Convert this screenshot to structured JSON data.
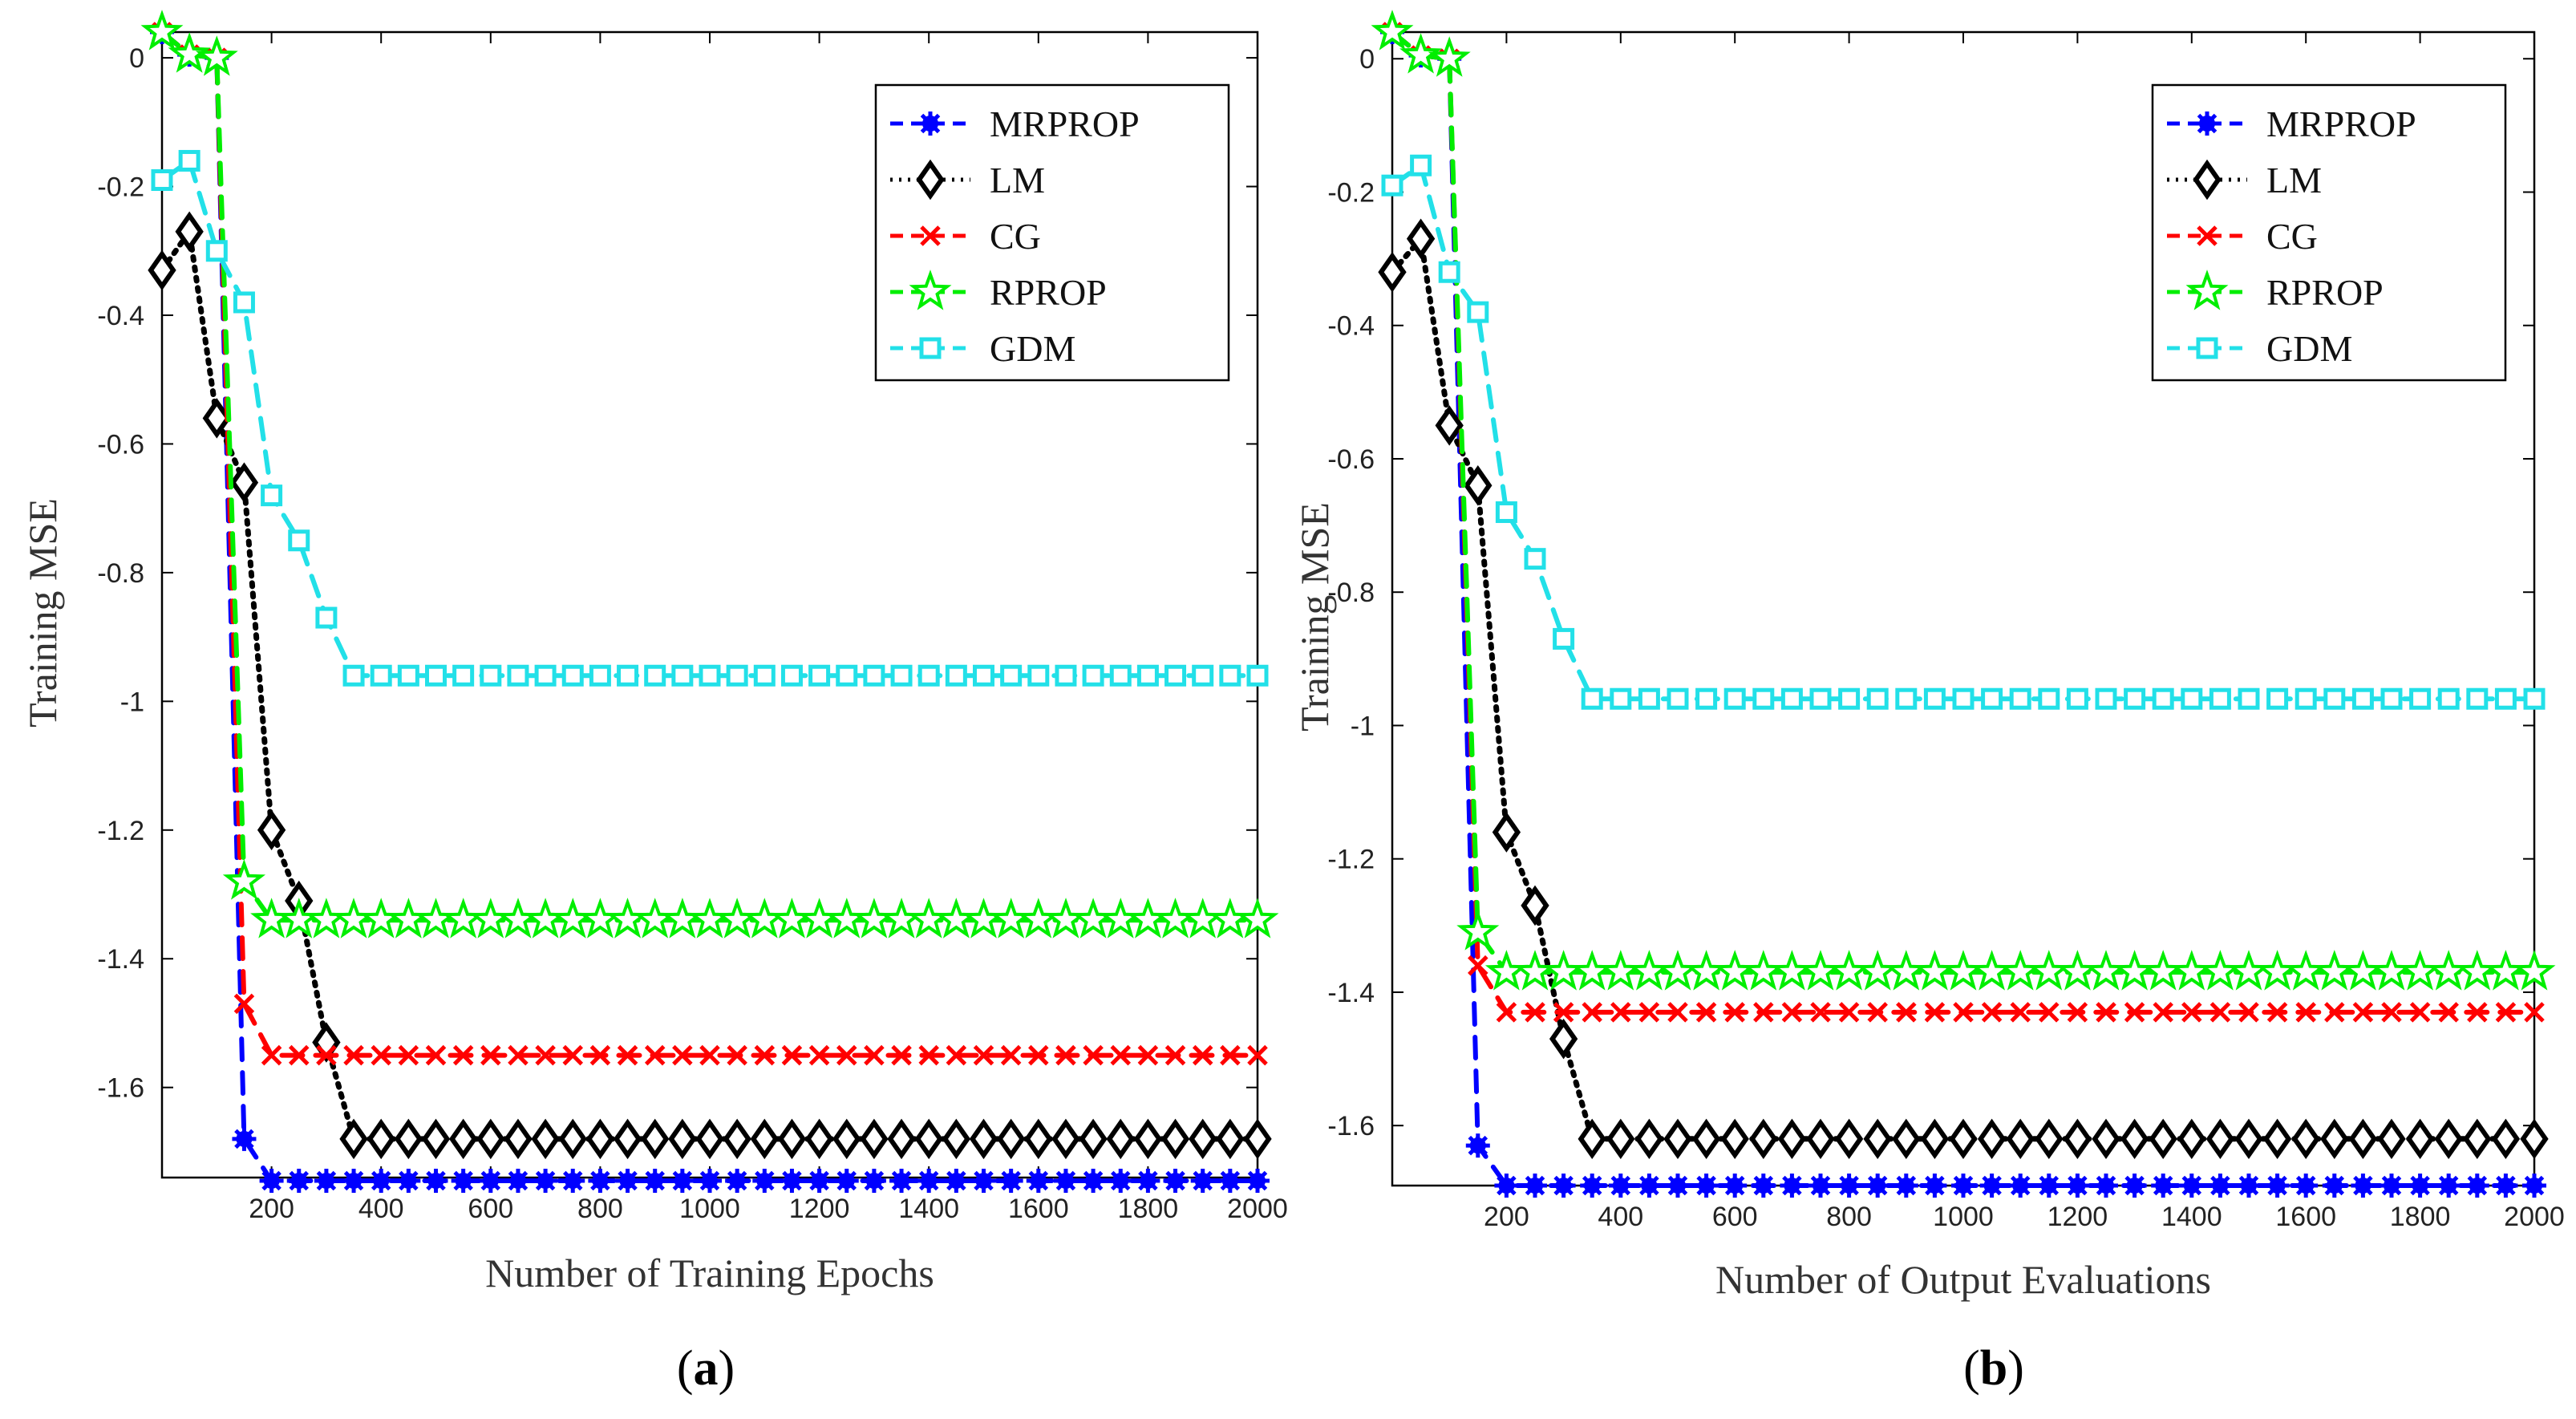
{
  "chart_data": [
    {
      "type": "line",
      "panel_label": "a",
      "title": "",
      "xlabel": "Number of Training Epochs",
      "ylabel": "Training MSE",
      "xlim": [
        0,
        2000
      ],
      "ylim": [
        -1.74,
        0.04
      ],
      "xticks": [
        200,
        400,
        600,
        800,
        1000,
        1200,
        1400,
        1600,
        1800,
        2000
      ],
      "xtick_labels": [
        "200",
        "400",
        "600",
        "800",
        "1000",
        "1200",
        "1400",
        "1600",
        "1800",
        "2000"
      ],
      "yticks": [
        0,
        -0.2,
        -0.4,
        -0.6,
        -0.8,
        -1,
        -1.2,
        -1.4,
        -1.6
      ],
      "ytick_labels": [
        "0",
        "-0.2",
        "-0.4",
        "-0.6",
        "-0.8",
        "-1",
        "-1.2",
        "-1.4",
        "-1.6"
      ],
      "legend_position": "top-right",
      "x": [
        0,
        50,
        100,
        150,
        200,
        250,
        300,
        350,
        400,
        450,
        500,
        550,
        600,
        650,
        700,
        750,
        800,
        850,
        900,
        950,
        1000,
        1050,
        1100,
        1150,
        1200,
        1250,
        1300,
        1350,
        1400,
        1450,
        1500,
        1550,
        1600,
        1650,
        1700,
        1750,
        1800,
        1850,
        1900,
        1950,
        2000
      ],
      "series": [
        {
          "name": "MRPROP",
          "color": "#0000ff",
          "marker": "asterisk",
          "dash": "dashed",
          "values": [
            0.04,
            0.005,
            0.0,
            -1.68,
            -1.745,
            -1.745,
            -1.745,
            -1.745,
            -1.745,
            -1.745,
            -1.745,
            -1.745,
            -1.745,
            -1.745,
            -1.745,
            -1.745,
            -1.745,
            -1.745,
            -1.745,
            -1.745,
            -1.745,
            -1.745,
            -1.745,
            -1.745,
            -1.745,
            -1.745,
            -1.745,
            -1.745,
            -1.745,
            -1.745,
            -1.745,
            -1.745,
            -1.745,
            -1.745,
            -1.745,
            -1.745,
            -1.745,
            -1.745,
            -1.745,
            -1.745,
            -1.745
          ]
        },
        {
          "name": "LM",
          "color": "#000000",
          "marker": "diamond",
          "dash": "dotted",
          "values": [
            -0.33,
            -0.27,
            -0.56,
            -0.66,
            -1.2,
            -1.31,
            -1.53,
            -1.68,
            -1.68,
            -1.68,
            -1.68,
            -1.68,
            -1.68,
            -1.68,
            -1.68,
            -1.68,
            -1.68,
            -1.68,
            -1.68,
            -1.68,
            -1.68,
            -1.68,
            -1.68,
            -1.68,
            -1.68,
            -1.68,
            -1.68,
            -1.68,
            -1.68,
            -1.68,
            -1.68,
            -1.68,
            -1.68,
            -1.68,
            -1.68,
            -1.68,
            -1.68,
            -1.68,
            -1.68,
            -1.68,
            -1.68
          ]
        },
        {
          "name": "CG",
          "color": "#ff0000",
          "marker": "x",
          "dash": "dashed",
          "values": [
            0.04,
            0.005,
            0.0,
            -1.47,
            -1.55,
            -1.55,
            -1.55,
            -1.55,
            -1.55,
            -1.55,
            -1.55,
            -1.55,
            -1.55,
            -1.55,
            -1.55,
            -1.55,
            -1.55,
            -1.55,
            -1.55,
            -1.55,
            -1.55,
            -1.55,
            -1.55,
            -1.55,
            -1.55,
            -1.55,
            -1.55,
            -1.55,
            -1.55,
            -1.55,
            -1.55,
            -1.55,
            -1.55,
            -1.55,
            -1.55,
            -1.55,
            -1.55,
            -1.55,
            -1.55,
            -1.55,
            -1.55
          ]
        },
        {
          "name": "RPROP",
          "color": "#00ee00",
          "marker": "star",
          "dash": "dashed",
          "values": [
            0.04,
            0.005,
            0.0,
            -1.28,
            -1.34,
            -1.34,
            -1.34,
            -1.34,
            -1.34,
            -1.34,
            -1.34,
            -1.34,
            -1.34,
            -1.34,
            -1.34,
            -1.34,
            -1.34,
            -1.34,
            -1.34,
            -1.34,
            -1.34,
            -1.34,
            -1.34,
            -1.34,
            -1.34,
            -1.34,
            -1.34,
            -1.34,
            -1.34,
            -1.34,
            -1.34,
            -1.34,
            -1.34,
            -1.34,
            -1.34,
            -1.34,
            -1.34,
            -1.34,
            -1.34,
            -1.34,
            -1.34
          ]
        },
        {
          "name": "GDM",
          "color": "#22e0e8",
          "marker": "square",
          "dash": "dashed",
          "values": [
            -0.19,
            -0.16,
            -0.3,
            -0.38,
            -0.68,
            -0.75,
            -0.87,
            -0.96,
            -0.96,
            -0.96,
            -0.96,
            -0.96,
            -0.96,
            -0.96,
            -0.96,
            -0.96,
            -0.96,
            -0.96,
            -0.96,
            -0.96,
            -0.96,
            -0.96,
            -0.96,
            -0.96,
            -0.96,
            -0.96,
            -0.96,
            -0.96,
            -0.96,
            -0.96,
            -0.96,
            -0.96,
            -0.96,
            -0.96,
            -0.96,
            -0.96,
            -0.96,
            -0.96,
            -0.96,
            -0.96,
            -0.96
          ]
        }
      ]
    },
    {
      "type": "line",
      "panel_label": "b",
      "title": "",
      "xlabel": "Number of Output Evaluations",
      "ylabel": "Training MSE",
      "xlim": [
        0,
        2000
      ],
      "ylim": [
        -1.69,
        0.04
      ],
      "xticks": [
        200,
        400,
        600,
        800,
        1000,
        1200,
        1400,
        1600,
        1800,
        2000
      ],
      "xtick_labels": [
        "200",
        "400",
        "600",
        "800",
        "1000",
        "1200",
        "1400",
        "1600",
        "1800",
        "2000"
      ],
      "yticks": [
        0,
        -0.2,
        -0.4,
        -0.6,
        -0.8,
        -1,
        -1.2,
        -1.4,
        -1.6
      ],
      "ytick_labels": [
        "0",
        "-0.2",
        "-0.4",
        "-0.6",
        "-0.8",
        "-1",
        "-1.2",
        "-1.4",
        "-1.6"
      ],
      "legend_position": "top-right",
      "x": [
        0,
        50,
        100,
        150,
        200,
        250,
        300,
        350,
        400,
        450,
        500,
        550,
        600,
        650,
        700,
        750,
        800,
        850,
        900,
        950,
        1000,
        1050,
        1100,
        1150,
        1200,
        1250,
        1300,
        1350,
        1400,
        1450,
        1500,
        1550,
        1600,
        1650,
        1700,
        1750,
        1800,
        1850,
        1900,
        1950,
        2000
      ],
      "series": [
        {
          "name": "MRPROP",
          "color": "#0000ff",
          "marker": "asterisk",
          "dash": "dashed",
          "values": [
            0.04,
            0.005,
            0.0,
            -1.63,
            -1.69,
            -1.69,
            -1.69,
            -1.69,
            -1.69,
            -1.69,
            -1.69,
            -1.69,
            -1.69,
            -1.69,
            -1.69,
            -1.69,
            -1.69,
            -1.69,
            -1.69,
            -1.69,
            -1.69,
            -1.69,
            -1.69,
            -1.69,
            -1.69,
            -1.69,
            -1.69,
            -1.69,
            -1.69,
            -1.69,
            -1.69,
            -1.69,
            -1.69,
            -1.69,
            -1.69,
            -1.69,
            -1.69,
            -1.69,
            -1.69,
            -1.69,
            -1.69
          ]
        },
        {
          "name": "LM",
          "color": "#000000",
          "marker": "diamond",
          "dash": "dotted",
          "values": [
            -0.32,
            -0.27,
            -0.55,
            -0.64,
            -1.16,
            -1.27,
            -1.47,
            -1.62,
            -1.62,
            -1.62,
            -1.62,
            -1.62,
            -1.62,
            -1.62,
            -1.62,
            -1.62,
            -1.62,
            -1.62,
            -1.62,
            -1.62,
            -1.62,
            -1.62,
            -1.62,
            -1.62,
            -1.62,
            -1.62,
            -1.62,
            -1.62,
            -1.62,
            -1.62,
            -1.62,
            -1.62,
            -1.62,
            -1.62,
            -1.62,
            -1.62,
            -1.62,
            -1.62,
            -1.62,
            -1.62,
            -1.62
          ]
        },
        {
          "name": "CG",
          "color": "#ff0000",
          "marker": "x",
          "dash": "dashed",
          "values": [
            0.04,
            0.005,
            0.0,
            -1.36,
            -1.43,
            -1.43,
            -1.43,
            -1.43,
            -1.43,
            -1.43,
            -1.43,
            -1.43,
            -1.43,
            -1.43,
            -1.43,
            -1.43,
            -1.43,
            -1.43,
            -1.43,
            -1.43,
            -1.43,
            -1.43,
            -1.43,
            -1.43,
            -1.43,
            -1.43,
            -1.43,
            -1.43,
            -1.43,
            -1.43,
            -1.43,
            -1.43,
            -1.43,
            -1.43,
            -1.43,
            -1.43,
            -1.43,
            -1.43,
            -1.43,
            -1.43,
            -1.43
          ]
        },
        {
          "name": "RPROP",
          "color": "#00ee00",
          "marker": "star",
          "dash": "dashed",
          "values": [
            0.04,
            0.005,
            0.0,
            -1.31,
            -1.37,
            -1.37,
            -1.37,
            -1.37,
            -1.37,
            -1.37,
            -1.37,
            -1.37,
            -1.37,
            -1.37,
            -1.37,
            -1.37,
            -1.37,
            -1.37,
            -1.37,
            -1.37,
            -1.37,
            -1.37,
            -1.37,
            -1.37,
            -1.37,
            -1.37,
            -1.37,
            -1.37,
            -1.37,
            -1.37,
            -1.37,
            -1.37,
            -1.37,
            -1.37,
            -1.37,
            -1.37,
            -1.37,
            -1.37,
            -1.37,
            -1.37,
            -1.37
          ]
        },
        {
          "name": "GDM",
          "color": "#22e0e8",
          "marker": "square",
          "dash": "dashed",
          "values": [
            -0.19,
            -0.16,
            -0.32,
            -0.38,
            -0.68,
            -0.75,
            -0.87,
            -0.96,
            -0.96,
            -0.96,
            -0.96,
            -0.96,
            -0.96,
            -0.96,
            -0.96,
            -0.96,
            -0.96,
            -0.96,
            -0.96,
            -0.96,
            -0.96,
            -0.96,
            -0.96,
            -0.96,
            -0.96,
            -0.96,
            -0.96,
            -0.96,
            -0.96,
            -0.96,
            -0.96,
            -0.96,
            -0.96,
            -0.96,
            -0.96,
            -0.96,
            -0.96,
            -0.96,
            -0.96,
            -0.96,
            -0.96
          ]
        }
      ]
    }
  ]
}
